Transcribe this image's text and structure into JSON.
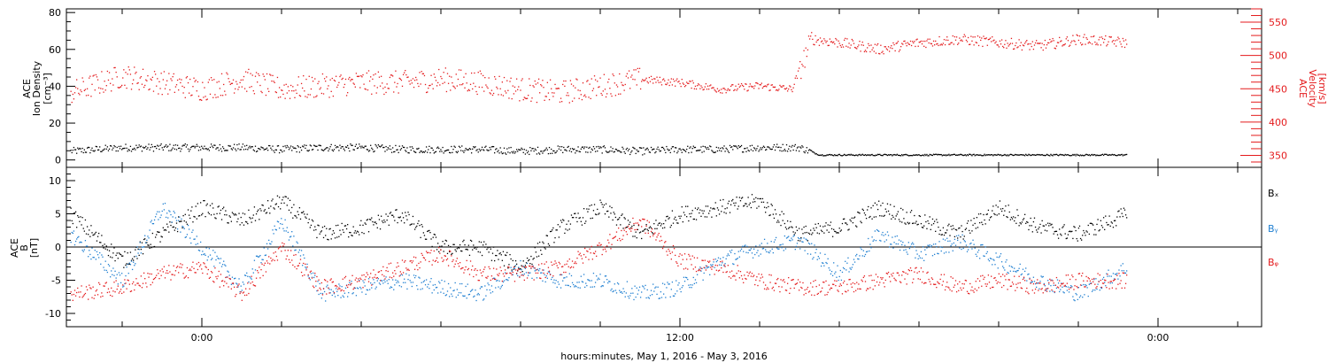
{
  "xlabel": "hours:minutes, May  1, 2016 - May  3, 2016",
  "x_ticks": [
    "0:00",
    "12:00",
    "0:00"
  ],
  "colors": {
    "black": "#000000",
    "red": "#e41a1c",
    "blue": "#1f7fd1"
  },
  "chart_data": [
    {
      "type": "scatter",
      "title": "",
      "ylabel_left": [
        "ACE",
        "Ion Density",
        "[cm⁻³]"
      ],
      "ylabel_right": [
        "ACE",
        "Velocity",
        "[km/s]"
      ],
      "xlim_hours": [
        -3.4,
        26.6
      ],
      "ylim_left": [
        -4,
        82
      ],
      "ylim_right": [
        332,
        570
      ],
      "left_ticks": [
        0,
        20,
        40,
        60,
        80
      ],
      "right_ticks": [
        350,
        400,
        450,
        500,
        550
      ],
      "series": [
        {
          "name": "",
          "axis": "left",
          "color": "#000000",
          "x_hours": [
            -3.3,
            -2,
            -1,
            0,
            1,
            2,
            3,
            4,
            5,
            6,
            7,
            8,
            9,
            10,
            11,
            12,
            13,
            14,
            15,
            15.5,
            16,
            18,
            20,
            22,
            23.2
          ],
          "values": [
            5,
            7,
            7,
            7,
            7,
            6,
            7,
            7,
            6,
            6,
            6,
            5,
            6,
            6,
            5,
            6,
            6,
            7,
            7,
            3,
            3,
            3,
            3,
            3,
            3
          ]
        },
        {
          "name": "",
          "axis": "right",
          "color": "#e41a1c",
          "x_hours": [
            -3.3,
            -2,
            -1,
            0,
            1,
            2,
            3,
            4,
            5,
            6,
            7,
            8,
            9,
            10,
            11,
            12,
            13,
            14,
            14.8,
            15.3,
            16,
            17,
            18,
            19,
            20,
            21,
            22,
            23.2
          ],
          "values": [
            445,
            470,
            460,
            450,
            465,
            450,
            455,
            460,
            460,
            465,
            460,
            450,
            445,
            455,
            465,
            460,
            450,
            455,
            450,
            525,
            520,
            510,
            520,
            525,
            520,
            515,
            525,
            520
          ]
        }
      ]
    },
    {
      "type": "scatter",
      "title": "",
      "ylabel_left": [
        "ACE",
        "B",
        "[nT]"
      ],
      "xlim_hours": [
        -3.4,
        26.6
      ],
      "ylim": [
        -12,
        12
      ],
      "y_ticks": [
        -10,
        -5,
        0,
        5,
        10
      ],
      "series": [
        {
          "name": "Bₓ",
          "color": "#000000",
          "x_hours": [
            -3.3,
            -2,
            -1,
            0,
            1,
            2,
            3,
            4,
            5,
            6,
            7,
            8,
            9,
            10,
            11,
            12,
            13,
            14,
            15,
            16,
            17,
            18,
            19,
            20,
            21,
            22,
            23.2
          ],
          "values": [
            5,
            -2,
            2,
            6,
            4,
            7,
            2,
            3,
            5,
            0,
            0,
            -3,
            3,
            6,
            2,
            5,
            6,
            7,
            2,
            3,
            6,
            4,
            2,
            6,
            3,
            2,
            5
          ]
        },
        {
          "name": "Bᵧ",
          "color": "#1f7fd1",
          "x_hours": [
            -3.3,
            -2,
            -1,
            0,
            1,
            2,
            3,
            4,
            5,
            6,
            7,
            8,
            9,
            10,
            11,
            12,
            13,
            14,
            15,
            16,
            17,
            18,
            19,
            20,
            21,
            22,
            23.2
          ],
          "values": [
            2,
            -5,
            6,
            0,
            -6,
            4,
            -7,
            -6,
            -5,
            -6,
            -7,
            -3,
            -5,
            -5,
            -7,
            -6,
            -2,
            0,
            1,
            -4,
            2,
            -1,
            1,
            -2,
            -5,
            -7,
            -3
          ]
        },
        {
          "name": "Bᵩ",
          "color": "#e41a1c",
          "x_hours": [
            -3.3,
            -2,
            -1,
            0,
            1,
            2,
            3,
            4,
            5,
            6,
            7,
            8,
            9,
            10,
            11,
            12,
            13,
            14,
            15,
            16,
            17,
            18,
            19,
            20,
            21,
            22,
            23.2
          ],
          "values": [
            -7,
            -6,
            -4,
            -3,
            -7,
            0,
            -6,
            -5,
            -3,
            -1,
            -4,
            -4,
            -3,
            0,
            4,
            -2,
            -3,
            -5,
            -6,
            -6,
            -5,
            -4,
            -6,
            -5,
            -6,
            -5,
            -5
          ]
        }
      ]
    }
  ]
}
